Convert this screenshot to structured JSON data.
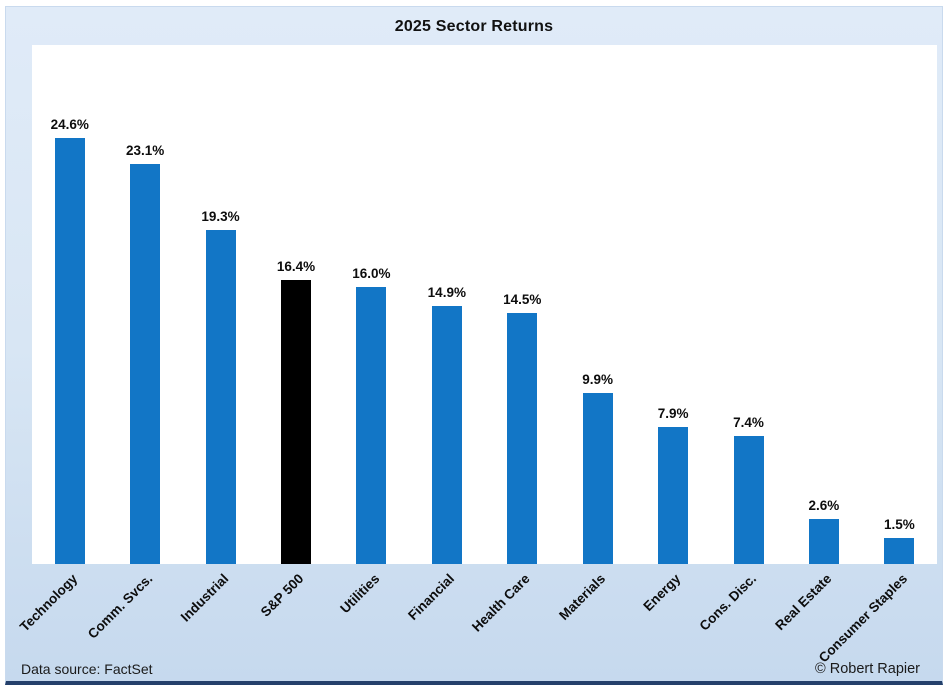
{
  "chart": {
    "title": "2025 Sector Returns",
    "footer_left": "Data source: FactSet",
    "footer_right": "© Robert Rapier"
  },
  "chart_data": {
    "type": "bar",
    "title": "2025 Sector Returns",
    "categories": [
      "Technology",
      "Comm. Svcs.",
      "Industrial",
      "S&P 500",
      "Utilities",
      "Financial",
      "Health Care",
      "Materials",
      "Energy",
      "Cons. Disc.",
      "Real Estate",
      "Consumer Staples"
    ],
    "values": [
      24.6,
      23.1,
      19.3,
      16.4,
      16.0,
      14.9,
      14.5,
      9.9,
      7.9,
      7.4,
      2.6,
      1.5
    ],
    "value_labels": [
      "24.6%",
      "23.1%",
      "19.3%",
      "16.4%",
      "16.0%",
      "14.9%",
      "14.5%",
      "9.9%",
      "7.9%",
      "7.4%",
      "2.6%",
      "1.5%"
    ],
    "highlight_index": 3,
    "bar_color": "#1276c6",
    "highlight_color": "#000000",
    "background_top": "#e0ebf8",
    "background_bottom": "#c6d9ee",
    "xlabel": "",
    "ylabel": "",
    "ylim": [
      0,
      30
    ],
    "grid": false,
    "legend": "none",
    "data_source": "FactSet",
    "credit": "© Robert Rapier"
  }
}
